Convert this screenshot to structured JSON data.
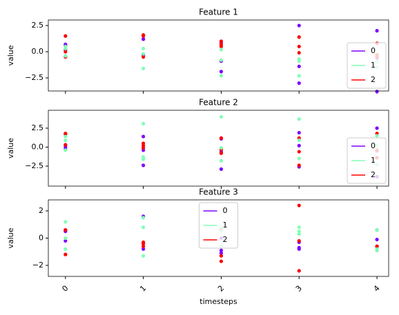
{
  "chart_data": [
    {
      "type": "line",
      "title": "Feature 1",
      "ylabel": "value",
      "x": [
        0,
        1,
        2,
        3,
        4
      ],
      "xlim": [
        -0.22,
        4.15
      ],
      "xticks": [
        0,
        1,
        2,
        3,
        4
      ],
      "show_xticklabels": false,
      "ylim": [
        -3.75,
        3.03
      ],
      "yticks": [
        {
          "value": -2.5,
          "label": "−2.5"
        },
        {
          "value": 0,
          "label": "0.0"
        },
        2.5
      ],
      "line_color": "#7f7f7f",
      "line_style": "dashed",
      "legend": {
        "loc": "lower right",
        "entries": [
          {
            "name": "0",
            "color": "#8000ff"
          },
          {
            "name": "1",
            "color": "#80ffb4"
          },
          {
            "name": "2",
            "color": "#ff0000"
          }
        ]
      },
      "series": [
        {
          "color": "#8000ff",
          "values": [
            0.7,
            1.2,
            -1.9,
            -3.0,
            -3.8
          ]
        },
        {
          "color": "#8000ff",
          "values": [
            0.6,
            1.2,
            0.9,
            2.5,
            2.0
          ]
        },
        {
          "color": "#8000ff",
          "values": [
            0.2,
            -0.3,
            -0.9,
            -1.4,
            -0.6
          ]
        },
        {
          "color": "#ff0000",
          "values": [
            1.5,
            1.5,
            0.7,
            1.4,
            0.8
          ]
        },
        {
          "color": "#ff0000",
          "values": [
            -0.5,
            1.6,
            1.0,
            -0.1,
            -0.5
          ]
        },
        {
          "color": "#ff0000",
          "values": [
            0.0,
            -0.5,
            0.5,
            0.5,
            -0.3
          ]
        },
        {
          "color": "#80ffb4",
          "values": [
            0.3,
            -1.6,
            -0.8,
            -0.9,
            -1.0
          ]
        },
        {
          "color": "#80ffb4",
          "values": [
            -0.4,
            0.3,
            -2.3,
            -0.7,
            -0.9
          ]
        },
        {
          "color": "#80ffb4",
          "values": [
            0.5,
            -0.2,
            0.2,
            -2.3,
            -1.5
          ]
        }
      ]
    },
    {
      "type": "line",
      "title": "Feature 2",
      "ylabel": "value",
      "x": [
        0,
        1,
        2,
        3,
        4
      ],
      "xlim": [
        -0.22,
        4.15
      ],
      "xticks": [
        0,
        1,
        2,
        3,
        4
      ],
      "show_xticklabels": false,
      "ylim": [
        -5.14,
        4.86
      ],
      "yticks": [
        {
          "value": -2.5,
          "label": "−2.5"
        },
        {
          "value": 0,
          "label": "0.0"
        },
        2.5
      ],
      "line_color": "#7f7f7f",
      "line_style": "dashed",
      "legend": {
        "loc": "lower right",
        "entries": [
          {
            "name": "0",
            "color": "#8000ff"
          },
          {
            "name": "1",
            "color": "#80ffb4"
          },
          {
            "name": "2",
            "color": "#ff0000"
          }
        ]
      },
      "series": [
        {
          "color": "#8000ff",
          "values": [
            0.3,
            1.4,
            1.1,
            1.9,
            2.5
          ]
        },
        {
          "color": "#8000ff",
          "values": [
            0.0,
            -2.4,
            -2.9,
            -2.6,
            -3.9
          ]
        },
        {
          "color": "#8000ff",
          "values": [
            -0.3,
            -0.4,
            -0.6,
            0.2,
            -0.5
          ]
        },
        {
          "color": "#ff0000",
          "values": [
            1.8,
            0.5,
            1.2,
            1.2,
            1.8
          ]
        },
        {
          "color": "#ff0000",
          "values": [
            1.7,
            -0.1,
            -0.8,
            -2.4,
            -1.4
          ]
        },
        {
          "color": "#ff0000",
          "values": [
            0.3,
            0.2,
            -0.3,
            -0.6,
            -0.4
          ]
        },
        {
          "color": "#80ffb4",
          "values": [
            1.4,
            3.1,
            4.0,
            3.7,
            1.5
          ]
        },
        {
          "color": "#80ffb4",
          "values": [
            -0.4,
            -1.3,
            -0.1,
            0.9,
            -2.3
          ]
        },
        {
          "color": "#80ffb4",
          "values": [
            0.9,
            -1.6,
            -1.8,
            -1.5,
            0.2
          ]
        }
      ]
    },
    {
      "type": "line",
      "title": "Feature 3",
      "ylabel": "value",
      "xlabel": "timesteps",
      "x": [
        0,
        1,
        2,
        3,
        4
      ],
      "xlim": [
        -0.22,
        4.15
      ],
      "xticks": [
        0,
        1,
        2,
        3,
        4
      ],
      "show_xticklabels": true,
      "ylim": [
        -2.81,
        2.81
      ],
      "yticks": [
        {
          "value": -2,
          "label": "−2"
        },
        0,
        2
      ],
      "line_color": "#7f7f7f",
      "line_style": "dashed",
      "legend": {
        "loc": "upper center",
        "entries": [
          {
            "name": "0",
            "color": "#8000ff"
          },
          {
            "name": "1",
            "color": "#80ffb4"
          },
          {
            "name": "2",
            "color": "#ff0000"
          }
        ]
      },
      "series": [
        {
          "color": "#8000ff",
          "values": [
            0.6,
            1.6,
            -1.1,
            -0.7,
            -0.6
          ]
        },
        {
          "color": "#8000ff",
          "values": [
            -0.2,
            -0.8,
            0.0,
            -0.3,
            0.6
          ]
        },
        {
          "color": "#8000ff",
          "values": [
            0.5,
            -0.4,
            -0.9,
            -0.8,
            -0.1
          ]
        },
        {
          "color": "#ff0000",
          "values": [
            0.6,
            -0.3,
            -1.7,
            2.4,
            -0.6
          ]
        },
        {
          "color": "#ff0000",
          "values": [
            -1.2,
            -0.4,
            -1.3,
            -2.4,
            -0.9
          ]
        },
        {
          "color": "#ff0000",
          "values": [
            -1.2,
            -0.6,
            0.6,
            -0.2,
            -0.6
          ]
        },
        {
          "color": "#80ffb4",
          "values": [
            1.2,
            1.5,
            0.8,
            0.8,
            -0.9
          ]
        },
        {
          "color": "#80ffb4",
          "values": [
            -0.8,
            -1.3,
            0.5,
            0.5,
            0.6
          ]
        },
        {
          "color": "#80ffb4",
          "values": [
            0.0,
            0.8,
            -0.6,
            0.3,
            -0.8
          ]
        }
      ]
    }
  ]
}
